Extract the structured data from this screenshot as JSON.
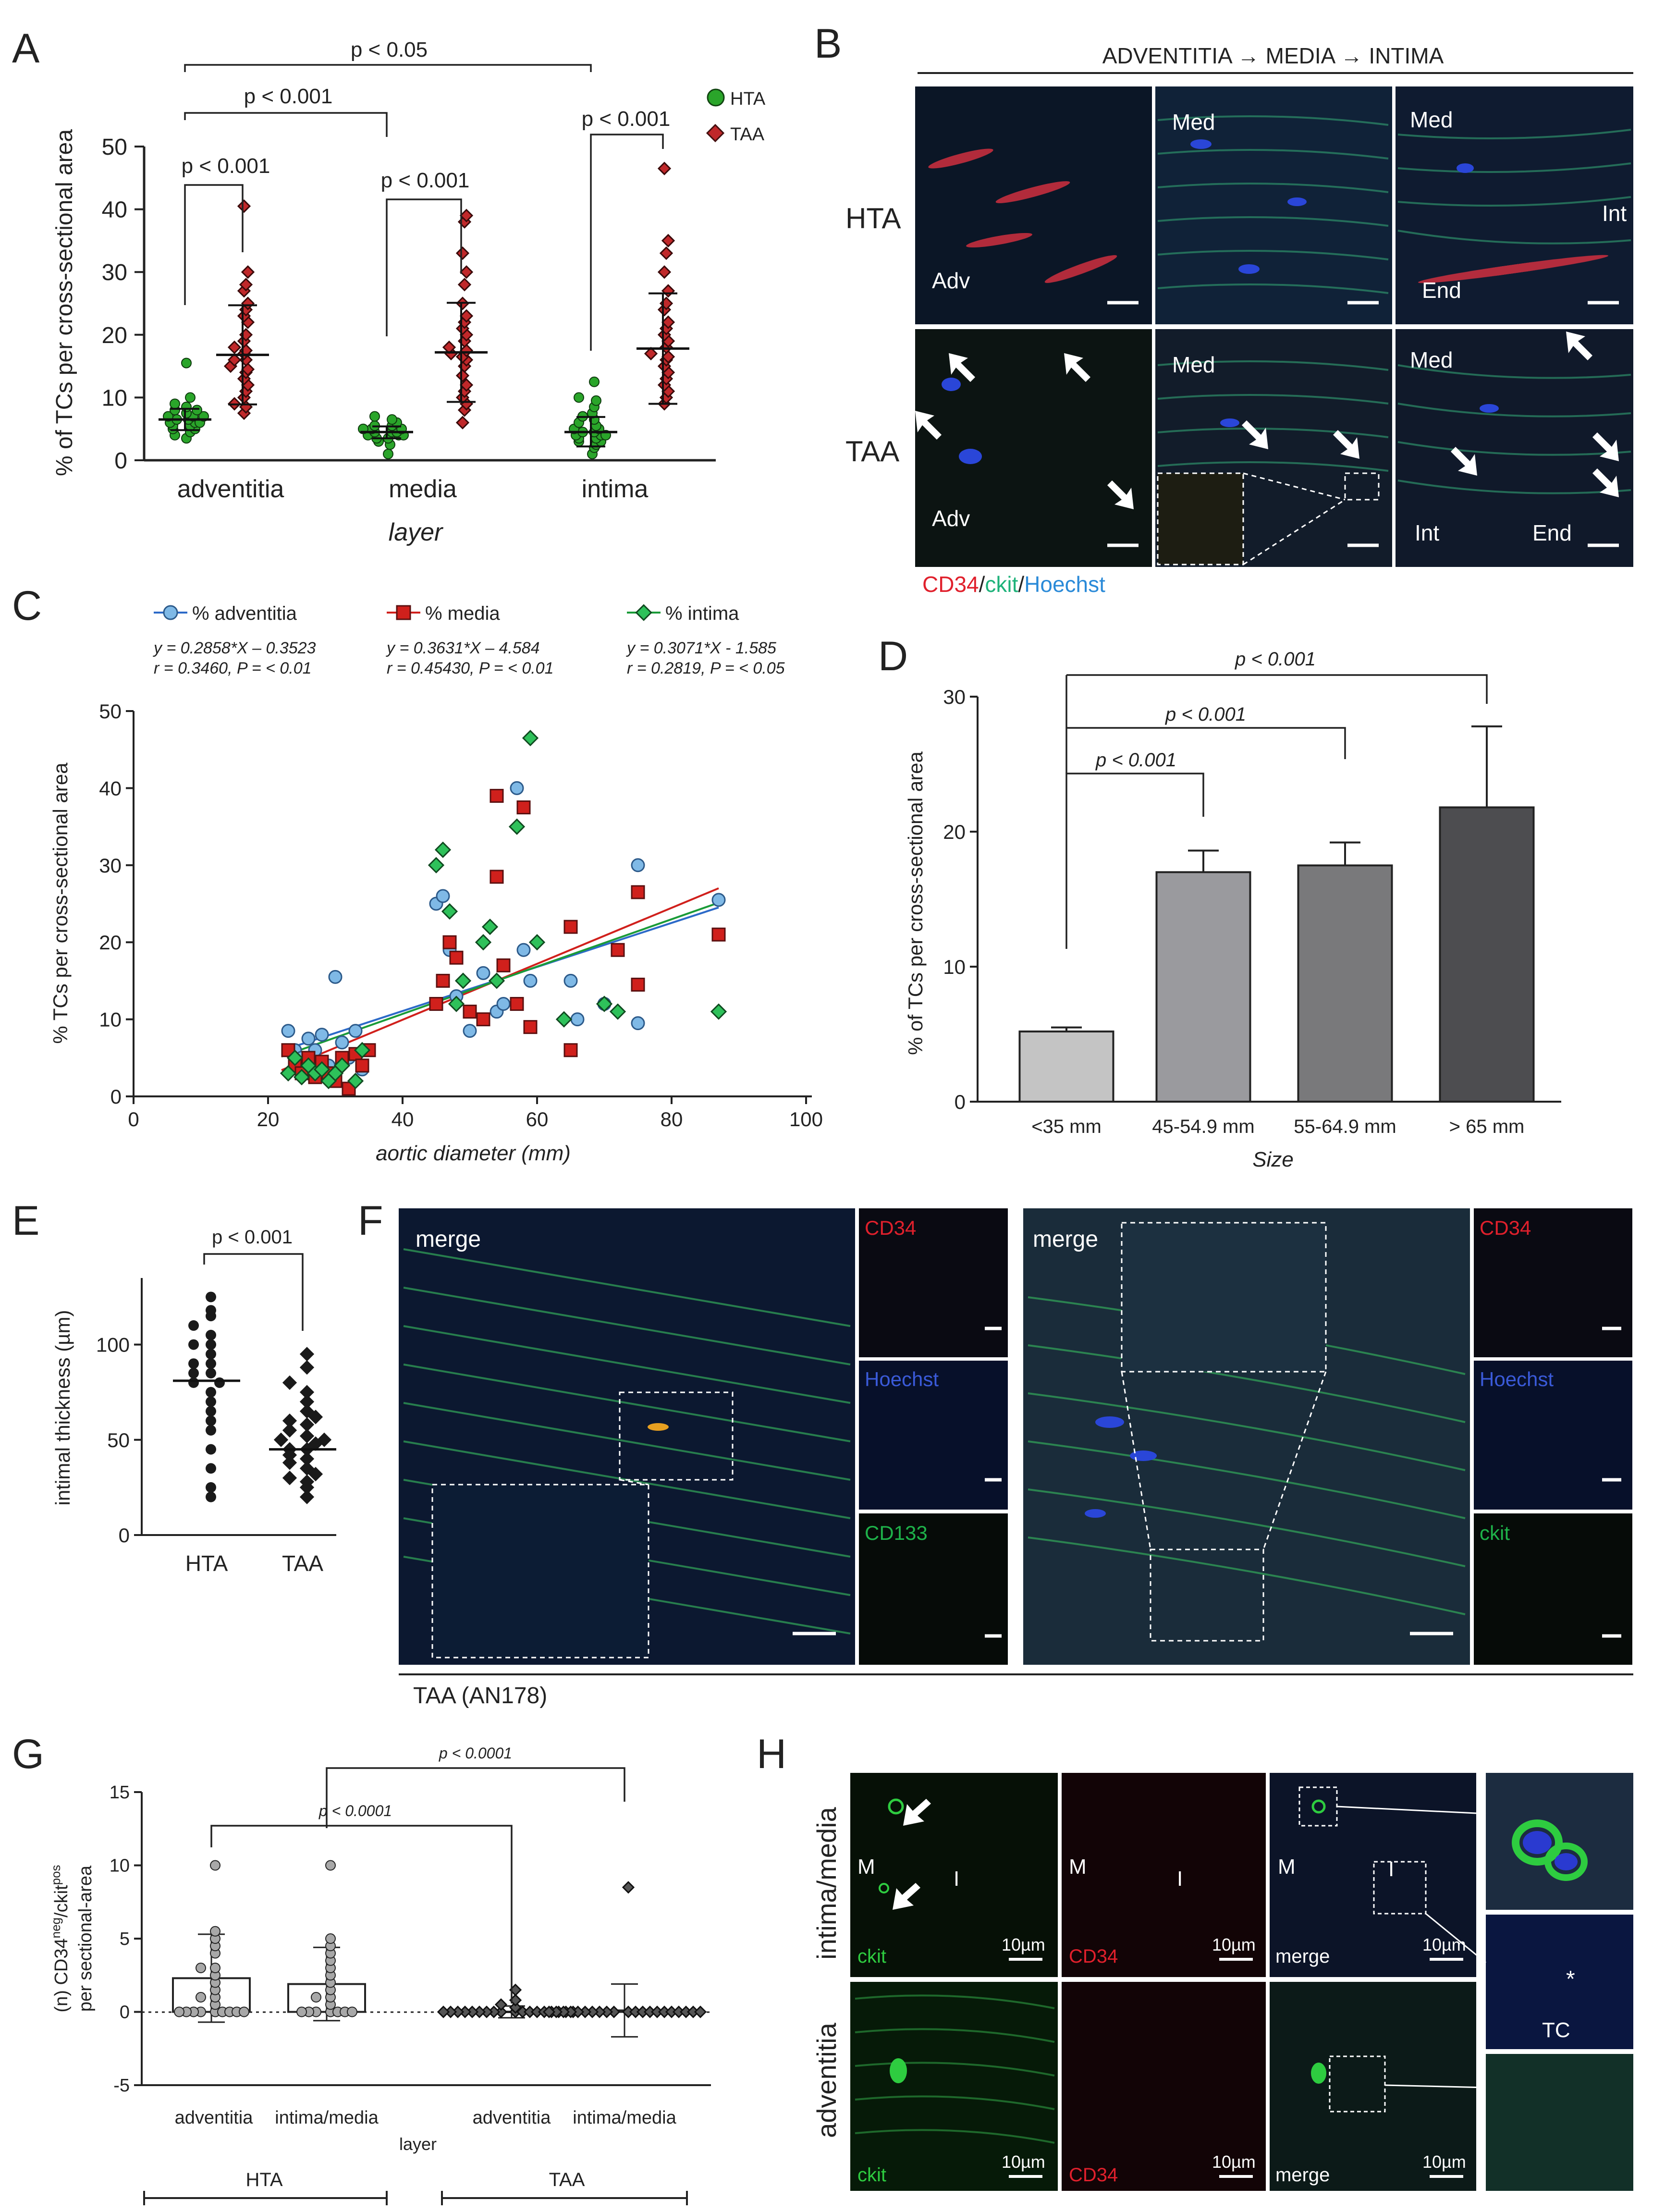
{
  "panel_letters": {
    "A": "A",
    "B": "B",
    "C": "C",
    "D": "D",
    "E": "E",
    "F": "F",
    "G": "G",
    "H": "H"
  },
  "panelA": {
    "legend": [
      "HTA",
      "TAA"
    ],
    "sig": {
      "top": "p < 0.05",
      "mid": "p < 0.001",
      "adv": "p < 0.001",
      "med": "p < 0.001",
      "int": "p < 0.001"
    }
  },
  "panelB": {
    "header": "ADVENTITIA → MEDIA → INTIMA",
    "rows": [
      "HTA",
      "TAA"
    ],
    "labels": {
      "adv": "Adv",
      "med": "Med",
      "int": "Int",
      "end": "End"
    },
    "stain": {
      "cd34": "CD34",
      "sep1": "/",
      "ckit": "ckit",
      "sep2": "/",
      "hoechst": "Hoechst"
    }
  },
  "panelC": {
    "legend": [
      "% adventitia",
      "% media",
      "% intima"
    ],
    "equations": [
      {
        "eq": "y = 0.2858*X – 0.3523",
        "stat": "r = 0.3460, P = < 0.01"
      },
      {
        "eq": "y = 0.3631*X – 4.584",
        "stat": "r = 0.45430, P = < 0.01"
      },
      {
        "eq": "y = 0.3071*X - 1.585",
        "stat": "r = 0.2819, P = < 0.05"
      }
    ]
  },
  "panelD": {
    "sig": [
      "p < 0.001",
      "p < 0.001",
      "p < 0.001"
    ]
  },
  "panelE": {
    "sig": "p < 0.001"
  },
  "panelF": {
    "merge": "merge",
    "left_channels": [
      "CD34",
      "Hoechst",
      "CD133"
    ],
    "right_channels": [
      "CD34",
      "Hoechst",
      "ckit"
    ],
    "caption": "TAA (AN178)"
  },
  "panelG": {
    "sig": [
      "p < 0.0001",
      "p < 0.0001"
    ],
    "groups": [
      "HTA",
      "TAA"
    ]
  },
  "panelH": {
    "rows": [
      "intima/media",
      "adventitia"
    ],
    "channels": [
      "ckit",
      "CD34",
      "merge"
    ],
    "scale": "10µm",
    "labels": {
      "M": "M",
      "I": "I",
      "TC": "TC",
      "star": "*"
    }
  },
  "chart_data": [
    {
      "id": "A",
      "type": "scatter",
      "xlabel": "layer",
      "ylabel": "% of TCs per cross-sectional area",
      "categories": [
        "adventitia",
        "media",
        "intima"
      ],
      "ylim": [
        0,
        50
      ],
      "yticks": [
        0,
        10,
        20,
        30,
        40,
        50
      ],
      "series": [
        {
          "name": "HTA",
          "color": "#2aa52a",
          "mean": [
            6.5,
            4.5,
            4.5
          ],
          "sd_low": [
            4.8,
            3.5,
            2.2
          ],
          "sd_high": [
            8.2,
            5.4,
            6.9
          ],
          "points": [
            [
              3.5,
              4,
              4.5,
              5,
              5,
              5.5,
              5.5,
              6,
              6,
              6,
              6.5,
              6.5,
              7,
              7,
              7,
              7.5,
              8,
              8,
              8.5,
              9,
              10,
              15.5
            ],
            [
              1,
              2.5,
              3,
              3.5,
              3.5,
              4,
              4,
              4,
              4.5,
              4.5,
              4.5,
              5,
              5,
              5,
              5.5,
              5.5,
              6,
              6.5,
              7
            ],
            [
              1,
              2,
              2.5,
              3,
              3,
              3.5,
              3.5,
              4,
              4,
              4,
              4.5,
              4.5,
              5,
              5,
              5.5,
              6,
              6.5,
              7,
              7.5,
              8.5,
              9.5,
              10,
              12.5
            ]
          ]
        },
        {
          "name": "TAA",
          "color": "#c0282a",
          "mean": [
            16.8,
            17.2,
            17.8
          ],
          "sd_low": [
            8.9,
            9.3,
            9.0
          ],
          "sd_high": [
            24.7,
            25.1,
            26.6
          ],
          "points": [
            [
              7.5,
              8.5,
              9,
              10,
              11,
              12,
              13,
              14,
              14.5,
              15,
              16,
              16,
              17,
              17.5,
              18,
              19,
              20,
              22,
              23,
              24,
              25,
              27,
              28,
              30,
              40.5
            ],
            [
              6,
              8,
              9,
              10,
              11,
              12,
              13.5,
              15,
              16,
              16.5,
              17,
              17.5,
              18,
              19,
              20,
              21,
              22,
              23,
              25,
              28,
              30,
              33,
              38,
              39
            ],
            [
              9,
              10,
              11,
              12,
              13,
              14,
              15,
              16,
              16.5,
              17,
              18,
              19,
              20,
              21,
              22,
              24,
              25,
              27,
              30,
              33,
              35,
              46.5
            ]
          ]
        }
      ]
    },
    {
      "id": "C",
      "type": "scatter",
      "xlabel": "aortic diameter (mm)",
      "ylabel": "% TCs per cross-sectional area",
      "xlim": [
        0,
        100
      ],
      "ylim": [
        0,
        50
      ],
      "xticks": [
        0,
        20,
        40,
        60,
        80,
        100
      ],
      "yticks": [
        0,
        10,
        20,
        30,
        40,
        50
      ],
      "series": [
        {
          "name": "% adventitia",
          "color": "#7fb9e6",
          "slope": 0.2858,
          "intercept": -0.3523,
          "points": [
            [
              23,
              8.5
            ],
            [
              24,
              6
            ],
            [
              25,
              5
            ],
            [
              26,
              7.5
            ],
            [
              27,
              6
            ],
            [
              28,
              8
            ],
            [
              29,
              4
            ],
            [
              30,
              15.5
            ],
            [
              31,
              7
            ],
            [
              32,
              5
            ],
            [
              33,
              8.5
            ],
            [
              34,
              3.5
            ],
            [
              45,
              25
            ],
            [
              46,
              26
            ],
            [
              47,
              19
            ],
            [
              48,
              13
            ],
            [
              50,
              8.5
            ],
            [
              52,
              16
            ],
            [
              54,
              11
            ],
            [
              55,
              12
            ],
            [
              57,
              40
            ],
            [
              58,
              19
            ],
            [
              59,
              15
            ],
            [
              65,
              15
            ],
            [
              66,
              10
            ],
            [
              70,
              12
            ],
            [
              75,
              9.5
            ],
            [
              75,
              30
            ],
            [
              87,
              25.5
            ]
          ]
        },
        {
          "name": "% media",
          "color": "#d0201c",
          "slope": 0.3631,
          "intercept": -4.584,
          "points": [
            [
              23,
              6
            ],
            [
              24,
              4
            ],
            [
              25,
              3
            ],
            [
              26,
              5
            ],
            [
              27,
              2.5
            ],
            [
              28,
              4.5
            ],
            [
              29,
              3
            ],
            [
              30,
              2
            ],
            [
              31,
              5
            ],
            [
              32,
              1
            ],
            [
              33,
              5.5
            ],
            [
              34,
              4
            ],
            [
              35,
              6
            ],
            [
              45,
              12
            ],
            [
              46,
              15
            ],
            [
              47,
              20
            ],
            [
              48,
              18
            ],
            [
              50,
              11
            ],
            [
              52,
              10
            ],
            [
              54,
              28.5
            ],
            [
              54,
              39
            ],
            [
              55,
              17
            ],
            [
              57,
              12
            ],
            [
              58,
              37.5
            ],
            [
              59,
              9
            ],
            [
              65,
              22
            ],
            [
              65,
              6
            ],
            [
              72,
              19
            ],
            [
              75,
              14.5
            ],
            [
              75,
              26.5
            ],
            [
              87,
              21
            ]
          ]
        },
        {
          "name": "% intima",
          "color": "#2ec15a",
          "slope": 0.3071,
          "intercept": -1.585,
          "points": [
            [
              23,
              3
            ],
            [
              24,
              5
            ],
            [
              25,
              2.5
            ],
            [
              26,
              4
            ],
            [
              27,
              3
            ],
            [
              28,
              3.5
            ],
            [
              29,
              2
            ],
            [
              30,
              3
            ],
            [
              31,
              4
            ],
            [
              33,
              2
            ],
            [
              34,
              6
            ],
            [
              45,
              30
            ],
            [
              46,
              32
            ],
            [
              47,
              24
            ],
            [
              48,
              12
            ],
            [
              49,
              15
            ],
            [
              52,
              20
            ],
            [
              53,
              22
            ],
            [
              54,
              15
            ],
            [
              57,
              35
            ],
            [
              59,
              46.5
            ],
            [
              60,
              20
            ],
            [
              64,
              10
            ],
            [
              70,
              12
            ],
            [
              72,
              11
            ],
            [
              87,
              11
            ]
          ]
        }
      ]
    },
    {
      "id": "D",
      "type": "bar",
      "xlabel": "Size",
      "ylabel": "% of TCs per cross-sectional area",
      "categories": [
        "<35 mm",
        "45-54.9 mm",
        "55-64.9 mm",
        "> 65 mm"
      ],
      "values": [
        5.2,
        17.0,
        17.5,
        21.8
      ],
      "errors": [
        0.3,
        1.6,
        1.7,
        6.0
      ],
      "colors": [
        "#c4c4c4",
        "#9a9a9e",
        "#79797b",
        "#4d4d50"
      ],
      "ylim": [
        0,
        30
      ],
      "yticks": [
        0,
        10,
        20,
        30
      ]
    },
    {
      "id": "E",
      "type": "scatter",
      "ylabel": "intimal thickness (µm)",
      "categories": [
        "HTA",
        "TAA"
      ],
      "ylim": [
        0,
        140
      ],
      "yticks": [
        0,
        50,
        100
      ],
      "mean": [
        81,
        45
      ],
      "sd_high": [
        null,
        null
      ],
      "points": [
        [
          20,
          25,
          35,
          45,
          55,
          60,
          65,
          70,
          75,
          80,
          80,
          85,
          85,
          90,
          90,
          95,
          100,
          100,
          105,
          110,
          115,
          118,
          125
        ],
        [
          20,
          25,
          28,
          30,
          32,
          35,
          38,
          40,
          42,
          45,
          45,
          48,
          50,
          50,
          52,
          55,
          58,
          60,
          62,
          65,
          70,
          75,
          80,
          88,
          95
        ]
      ]
    },
    {
      "id": "G",
      "type": "bar",
      "xlabel": "layer",
      "ylabel": "(n) CD34neg/ckitpos per sectional-area",
      "categories": [
        "adventitia",
        "intima/media",
        "adventitia",
        "intima/media"
      ],
      "values": [
        2.3,
        1.9,
        0.0,
        0.1
      ],
      "sd": [
        3.0,
        2.5,
        0.4,
        1.8
      ],
      "ylim": [
        -5,
        15
      ],
      "yticks": [
        -5,
        0,
        5,
        10,
        15
      ],
      "points": [
        [
          0,
          0,
          0,
          0,
          0,
          0,
          0,
          0,
          0,
          0.5,
          1,
          1,
          1.5,
          2,
          2.5,
          3,
          3,
          4,
          4.5,
          5,
          5.5,
          10
        ],
        [
          0,
          0,
          0,
          0,
          0,
          0,
          0,
          0.5,
          1,
          1,
          1.5,
          2,
          2.5,
          3,
          3.5,
          4,
          4.5,
          5,
          10
        ],
        [
          0,
          0,
          0,
          0,
          0,
          0,
          0,
          0,
          0,
          0,
          0,
          0,
          0,
          0,
          0,
          0,
          0,
          0,
          0.3,
          0.5,
          0.8,
          1.5
        ],
        [
          0,
          0,
          0,
          0,
          0,
          0,
          0,
          0,
          0,
          0,
          0,
          0,
          0,
          0,
          0,
          0,
          0,
          0,
          0,
          0,
          0,
          8.5
        ]
      ]
    }
  ]
}
